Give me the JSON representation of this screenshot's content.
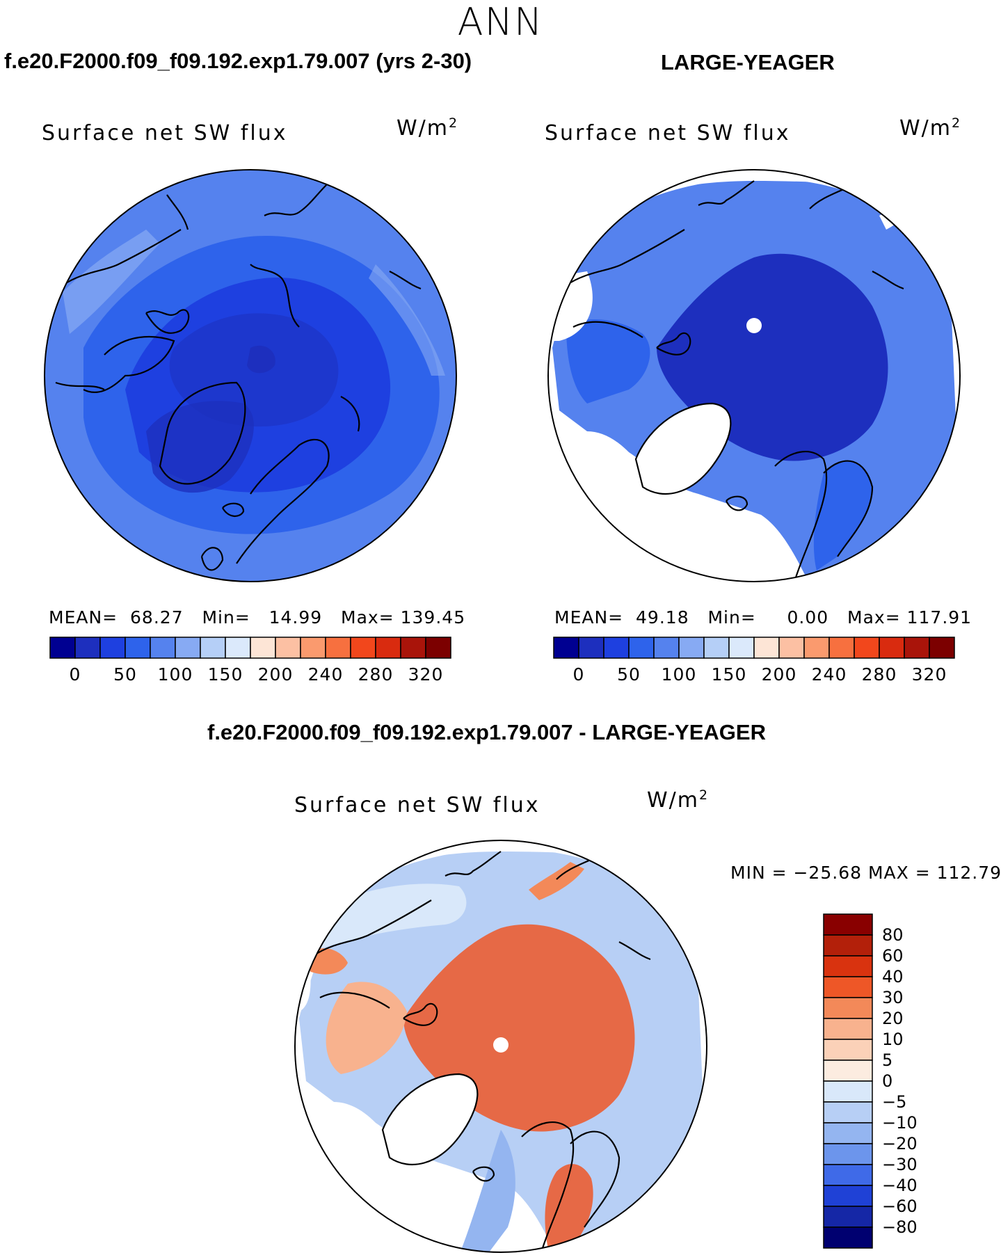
{
  "title": "ANN",
  "panels": [
    {
      "case_title": "f.e20.F2000.f09_f09.192.exp1.79.007 (yrs 2-30)",
      "variable": "Surface net SW flux",
      "units": "W/m",
      "units_sup": "2",
      "stats": {
        "mean_label": "MEAN=",
        "mean": "68.27",
        "min_label": "Min=",
        "min": "14.99",
        "max_label": "Max=",
        "max": "139.45"
      }
    },
    {
      "case_title": "LARGE-YEAGER",
      "variable": "Surface net SW flux",
      "units": "W/m",
      "units_sup": "2",
      "stats": {
        "mean_label": "MEAN=",
        "mean": "49.18",
        "min_label": "Min=",
        "min": "0.00",
        "max_label": "Max=",
        "max": "117.91"
      }
    }
  ],
  "colorbar": {
    "labels": [
      "0",
      "50",
      "100",
      "150",
      "200",
      "240",
      "280",
      "320"
    ],
    "colors": [
      "#000091",
      "#1d2fbe",
      "#1e40e0",
      "#2e63eb",
      "#5582ee",
      "#87aaf3",
      "#b5cff7",
      "#dbe9fb",
      "#fde5d6",
      "#fcc0a3",
      "#fa9a6e",
      "#f7703f",
      "#f2471c",
      "#d92b0f",
      "#a9140a",
      "#7c0000"
    ]
  },
  "difference": {
    "case_title": "f.e20.F2000.f09_f09.192.exp1.79.007 - LARGE-YEAGER",
    "variable": "Surface net SW flux",
    "units": "W/m",
    "units_sup": "2",
    "minmax": "MIN = −25.68 MAX = 112.79",
    "colorbar_labels": [
      "80",
      "60",
      "40",
      "30",
      "20",
      "10",
      "5",
      "0",
      "−5",
      "−10",
      "−20",
      "−30",
      "−40",
      "−60",
      "−80"
    ],
    "colorbar_colors": [
      "#890000",
      "#b3200a",
      "#d9330f",
      "#ee5727",
      "#f38959",
      "#f8b28e",
      "#fbd1b8",
      "#fcece0",
      "#d9e8fa",
      "#b7cff5",
      "#94b5f0",
      "#6c95ec",
      "#3f6ae8",
      "#1f41d6",
      "#1527a6",
      "#000070"
    ]
  }
}
